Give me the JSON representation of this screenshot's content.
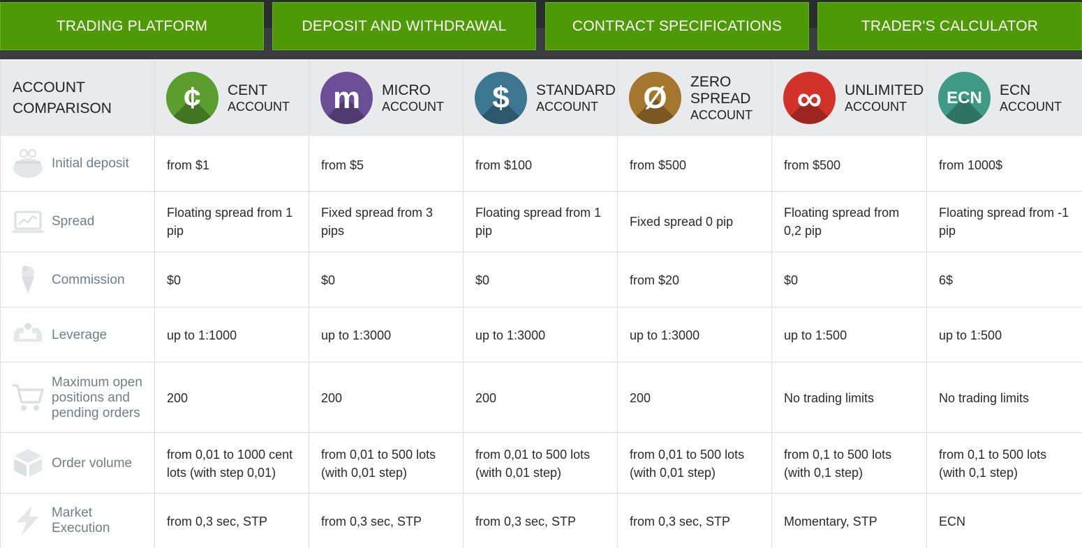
{
  "nav": {
    "tabs": [
      {
        "label": "TRADING PLATFORM"
      },
      {
        "label": "DEPOSIT AND WITHDRAWAL"
      },
      {
        "label": "CONTRACT SPECIFICATIONS"
      },
      {
        "label": "TRADER'S CALCULATOR"
      }
    ]
  },
  "table": {
    "title_line1": "ACCOUNT",
    "title_line2": "COMPARISON",
    "accounts": [
      {
        "name": "CENT",
        "sub": "ACCOUNT",
        "glyph": "¢",
        "color": "#5a9e2f",
        "icon": "cent-icon"
      },
      {
        "name": "MICRO",
        "sub": "ACCOUNT",
        "glyph": "m",
        "color": "#6b4f96",
        "icon": "micro-icon"
      },
      {
        "name": "STANDARD",
        "sub": "ACCOUNT",
        "glyph": "$",
        "color": "#3d7690",
        "icon": "dollar-icon"
      },
      {
        "name": "ZERO",
        "name2": "SPREAD",
        "sub": "ACCOUNT",
        "glyph": "Ø",
        "color": "#a5762d",
        "icon": "zero-icon"
      },
      {
        "name": "UNLIMITED",
        "sub": "ACCOUNT",
        "glyph": "∞",
        "color": "#d1332a",
        "icon": "infinity-icon"
      },
      {
        "name": "ECN",
        "sub": "ACCOUNT",
        "glyph": "ECN",
        "color": "#3e9a84",
        "icon": "ecn-icon"
      }
    ],
    "rows": [
      {
        "label": "Initial deposit",
        "icon": "piggy-bank-icon",
        "values": [
          "from $1",
          "from $5",
          "from $100",
          "from $500",
          "from $500",
          "from 1000$"
        ]
      },
      {
        "label": "Spread",
        "icon": "laptop-chart-icon",
        "values": [
          "Floating spread from 1 pip",
          "Fixed spread from 3 pips",
          "Floating spread from 1 pip",
          "Fixed spread 0 pip",
          "Floating spread from 0,2 pip",
          "Floating spread from  -1 pip"
        ]
      },
      {
        "label": "Commission",
        "icon": "ice-cream-icon",
        "values": [
          "$0",
          "$0",
          "$0",
          "from $20",
          "$0",
          "6$"
        ]
      },
      {
        "label": "Leverage",
        "icon": "muscle-icon",
        "values": [
          "up to 1:1000",
          "up to 1:3000",
          "up to 1:3000",
          "up to 1:3000",
          "up to 1:500",
          "up to 1:500"
        ]
      },
      {
        "label": "Maximum open positions and pending orders",
        "icon": "cart-icon",
        "values": [
          "200",
          "200",
          "200",
          "200",
          "No trading limits",
          "No trading limits"
        ]
      },
      {
        "label": "Order volume",
        "icon": "box-icon",
        "values": [
          "from 0,01 to 1000 cent lots (with step 0,01)",
          "from 0,01 to 500 lots (with 0,01 step)",
          "from 0,01 to 500 lots (with 0,01 step)",
          "from 0,01 to 500 lots (with 0,01 step)",
          "from 0,1 to 500 lots (with 0,1 step)",
          "from 0,1 to 500 lots (with 0,1 step)"
        ]
      },
      {
        "label": "Market Execution",
        "icon": "lightning-icon",
        "values": [
          "from 0,3 sec, STP",
          "from 0,3 sec, STP",
          "from 0,3 sec, STP",
          "from 0,3 sec, STP",
          "Momentary, STP",
          "ECN"
        ]
      }
    ]
  }
}
